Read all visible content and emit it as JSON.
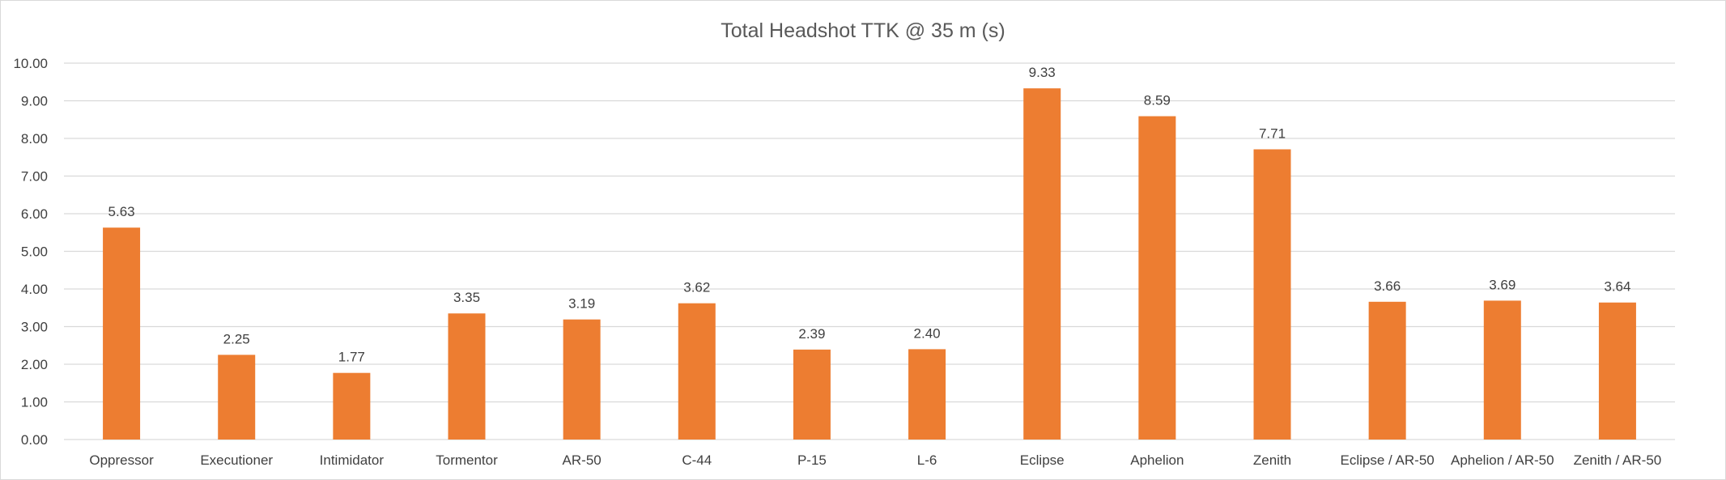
{
  "chart_data": {
    "type": "bar",
    "title": "Total Headshot TTK @ 35 m (s)",
    "xlabel": "",
    "ylabel": "",
    "ylim": [
      0,
      10
    ],
    "ytick_step": 1,
    "ytick_labels": [
      "0.00",
      "1.00",
      "2.00",
      "3.00",
      "4.00",
      "5.00",
      "6.00",
      "7.00",
      "8.00",
      "9.00",
      "10.00"
    ],
    "grid": true,
    "legend": "none",
    "bar_color": "#ED7D31",
    "categories": [
      "Oppressor",
      "Executioner",
      "Intimidator",
      "Tormentor",
      "AR-50",
      "C-44",
      "P-15",
      "L-6",
      "Eclipse",
      "Aphelion",
      "Zenith",
      "Eclipse / AR-50",
      "Aphelion / AR-50",
      "Zenith / AR-50"
    ],
    "values": [
      5.63,
      2.25,
      1.77,
      3.35,
      3.19,
      3.62,
      2.39,
      2.4,
      9.33,
      8.59,
      7.71,
      3.66,
      3.69,
      3.64
    ],
    "data_labels": [
      "5.63",
      "2.25",
      "1.77",
      "3.35",
      "3.19",
      "3.62",
      "2.39",
      "2.40",
      "9.33",
      "8.59",
      "7.71",
      "3.66",
      "3.69",
      "3.64"
    ]
  }
}
